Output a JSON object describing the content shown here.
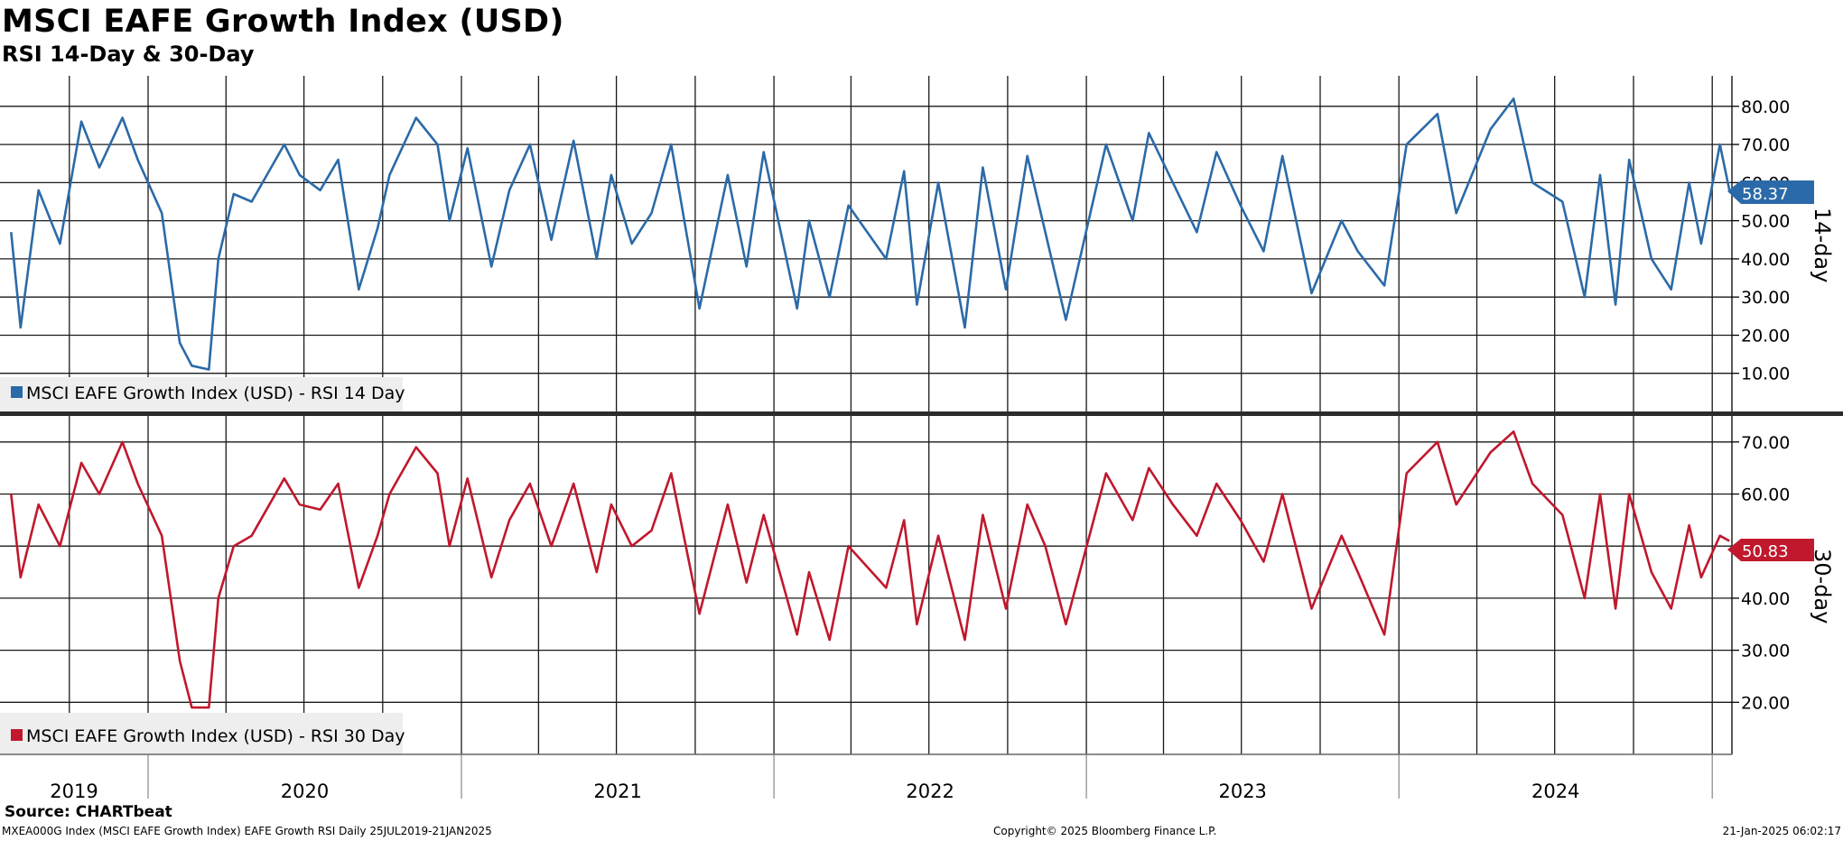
{
  "header": {
    "title": "MSCI EAFE Growth Index (USD)",
    "subtitle": "RSI 14-Day & 30-Day"
  },
  "footer": {
    "source": "Source: CHARTbeat",
    "left": "MXEA000G Index (MSCI EAFE Growth Index) EAFE Growth RSI  Daily 25JUL2019-21JAN2025",
    "center": "Copyright© 2025 Bloomberg Finance L.P.",
    "right": "21-Jan-2025 06:02:17"
  },
  "colors": {
    "rsi14": "#2b6aa8",
    "rsi30": "#c0182d",
    "grid": "#1a1a1a",
    "legend_bg": "#eeeeee"
  },
  "chart_data": [
    {
      "type": "line",
      "panel": "top",
      "axis_label": "14-day",
      "ylim": [
        0,
        88
      ],
      "yticks": [
        "10.00",
        "20.00",
        "30.00",
        "40.00",
        "50.00",
        "60.00",
        "70.00",
        "80.00"
      ],
      "grid": true,
      "legend": "bottom-left",
      "series": [
        {
          "name": "MSCI EAFE Growth Index (USD) - RSI 14 Day",
          "last_value": "58.37",
          "x": [
            "2019-07-25",
            "2019-08-05",
            "2019-08-26",
            "2019-09-20",
            "2019-10-15",
            "2019-11-05",
            "2019-12-02",
            "2019-12-20",
            "2020-01-17",
            "2020-02-07",
            "2020-02-21",
            "2020-03-12",
            "2020-03-23",
            "2020-04-10",
            "2020-05-01",
            "2020-06-08",
            "2020-06-26",
            "2020-07-20",
            "2020-08-10",
            "2020-09-03",
            "2020-09-25",
            "2020-10-09",
            "2020-11-09",
            "2020-12-04",
            "2020-12-18",
            "2021-01-08",
            "2021-02-05",
            "2021-02-26",
            "2021-03-22",
            "2021-04-16",
            "2021-05-12",
            "2021-06-08",
            "2021-06-25",
            "2021-07-19",
            "2021-08-11",
            "2021-09-03",
            "2021-10-06",
            "2021-11-08",
            "2021-11-30",
            "2021-12-20",
            "2022-01-28",
            "2022-02-11",
            "2022-03-07",
            "2022-03-29",
            "2022-05-12",
            "2022-06-02",
            "2022-06-17",
            "2022-07-12",
            "2022-08-12",
            "2022-09-02",
            "2022-09-29",
            "2022-10-24",
            "2022-11-14",
            "2022-12-08",
            "2023-01-24",
            "2023-02-24",
            "2023-03-15",
            "2023-04-12",
            "2023-05-10",
            "2023-06-02",
            "2023-06-30",
            "2023-07-27",
            "2023-08-18",
            "2023-09-21",
            "2023-10-26",
            "2023-11-14",
            "2023-12-15",
            "2024-01-10",
            "2024-02-15",
            "2024-03-08",
            "2024-04-17",
            "2024-05-14",
            "2024-06-05",
            "2024-07-10",
            "2024-08-05",
            "2024-08-23",
            "2024-09-10",
            "2024-09-26",
            "2024-10-22",
            "2024-11-14",
            "2024-12-05",
            "2024-12-19",
            "2025-01-10",
            "2025-01-21"
          ],
          "values": [
            47,
            22,
            58,
            44,
            76,
            64,
            77,
            66,
            52,
            18,
            12,
            11,
            40,
            57,
            55,
            70,
            62,
            58,
            66,
            32,
            48,
            62,
            77,
            70,
            50,
            69,
            38,
            58,
            70,
            45,
            71,
            40,
            62,
            44,
            52,
            70,
            27,
            62,
            38,
            68,
            27,
            50,
            30,
            54,
            40,
            63,
            28,
            60,
            22,
            64,
            32,
            67,
            47,
            24,
            70,
            50,
            73,
            60,
            47,
            68,
            54,
            42,
            67,
            31,
            50,
            42,
            33,
            70,
            78,
            52,
            74,
            82,
            60,
            55,
            30,
            62,
            28,
            66,
            40,
            32,
            60,
            44,
            70,
            58
          ]
        }
      ]
    },
    {
      "type": "line",
      "panel": "bottom",
      "axis_label": "30-day",
      "ylim": [
        10,
        75
      ],
      "yticks": [
        "20.00",
        "30.00",
        "40.00",
        "50.00",
        "60.00",
        "70.00"
      ],
      "grid": true,
      "legend": "bottom-left",
      "series": [
        {
          "name": "MSCI EAFE Growth Index (USD) - RSI 30 Day",
          "last_value": "50.83",
          "x": [
            "2019-07-25",
            "2019-08-05",
            "2019-08-26",
            "2019-09-20",
            "2019-10-15",
            "2019-11-05",
            "2019-12-02",
            "2019-12-20",
            "2020-01-17",
            "2020-02-07",
            "2020-02-21",
            "2020-03-12",
            "2020-03-23",
            "2020-04-10",
            "2020-05-01",
            "2020-06-08",
            "2020-06-26",
            "2020-07-20",
            "2020-08-10",
            "2020-09-03",
            "2020-09-25",
            "2020-10-09",
            "2020-11-09",
            "2020-12-04",
            "2020-12-18",
            "2021-01-08",
            "2021-02-05",
            "2021-02-26",
            "2021-03-22",
            "2021-04-16",
            "2021-05-12",
            "2021-06-08",
            "2021-06-25",
            "2021-07-19",
            "2021-08-11",
            "2021-09-03",
            "2021-10-06",
            "2021-11-08",
            "2021-11-30",
            "2021-12-20",
            "2022-01-28",
            "2022-02-11",
            "2022-03-07",
            "2022-03-29",
            "2022-05-12",
            "2022-06-02",
            "2022-06-17",
            "2022-07-12",
            "2022-08-12",
            "2022-09-02",
            "2022-09-29",
            "2022-10-24",
            "2022-11-14",
            "2022-12-08",
            "2023-01-24",
            "2023-02-24",
            "2023-03-15",
            "2023-04-12",
            "2023-05-10",
            "2023-06-02",
            "2023-06-30",
            "2023-07-27",
            "2023-08-18",
            "2023-09-21",
            "2023-10-26",
            "2023-11-14",
            "2023-12-15",
            "2024-01-10",
            "2024-02-15",
            "2024-03-08",
            "2024-04-17",
            "2024-05-14",
            "2024-06-05",
            "2024-07-10",
            "2024-08-05",
            "2024-08-23",
            "2024-09-10",
            "2024-09-26",
            "2024-10-22",
            "2024-11-14",
            "2024-12-05",
            "2024-12-19",
            "2025-01-10",
            "2025-01-21"
          ],
          "values": [
            60,
            44,
            58,
            50,
            66,
            60,
            70,
            62,
            52,
            28,
            19,
            19,
            40,
            50,
            52,
            63,
            58,
            57,
            62,
            42,
            52,
            60,
            69,
            64,
            50,
            63,
            44,
            55,
            62,
            50,
            62,
            45,
            58,
            50,
            53,
            64,
            37,
            58,
            43,
            56,
            33,
            45,
            32,
            50,
            42,
            55,
            35,
            52,
            32,
            56,
            38,
            58,
            50,
            35,
            64,
            55,
            65,
            58,
            52,
            62,
            55,
            47,
            60,
            38,
            52,
            45,
            33,
            64,
            70,
            58,
            68,
            72,
            62,
            56,
            40,
            60,
            38,
            60,
            45,
            38,
            54,
            44,
            52,
            51
          ]
        }
      ]
    }
  ],
  "x_axis": {
    "years": [
      "2019",
      "2020",
      "2021",
      "2022",
      "2023",
      "2024"
    ]
  }
}
